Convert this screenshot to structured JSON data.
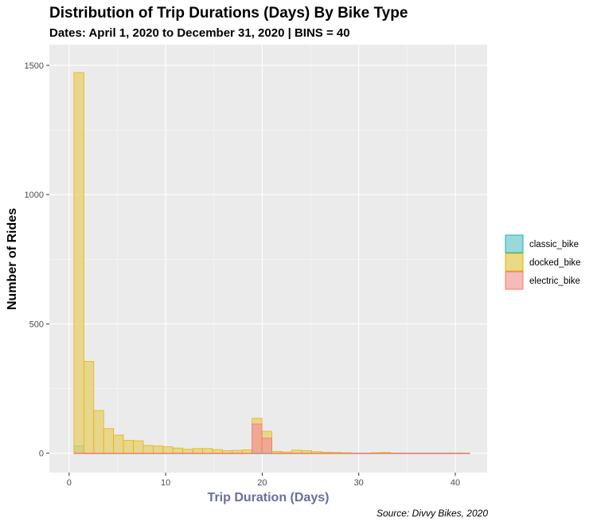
{
  "title": "Distribution of Trip Durations (Days) By Bike Type",
  "subtitle": "Dates: April 1, 2020 to December 31, 2020 | BINS = 40",
  "caption": "Source: Divvy Bikes, 2020",
  "chart_data": {
    "type": "histogram",
    "title": "Distribution of Trip Durations (Days) By Bike Type",
    "subtitle": "Dates: April 1, 2020 to December 31, 2020 | BINS = 40",
    "xlabel": "Trip Duration (Days)",
    "ylabel": "Number of Rides",
    "xlim": [
      -2.05,
      43.3
    ],
    "ylim": [
      -75,
      1580
    ],
    "x_ticks": [
      0,
      10,
      20,
      30,
      40
    ],
    "y_ticks": [
      0,
      500,
      1000,
      1500
    ],
    "grid": true,
    "legend_position": "right",
    "bins": 40,
    "bin_width": 1.025,
    "bin_start": 0.5,
    "series": [
      {
        "name": "classic_bike",
        "fill": "#7fd0d4",
        "stroke": "#00b1b8",
        "values": [
          28,
          0,
          0,
          0,
          0,
          0,
          0,
          0,
          0,
          0,
          0,
          0,
          0,
          0,
          0,
          0,
          0,
          0,
          0,
          0,
          0,
          0,
          0,
          0,
          0,
          0,
          0,
          0,
          0,
          0,
          0,
          0,
          0,
          0,
          0,
          0,
          0,
          0,
          0,
          0
        ]
      },
      {
        "name": "docked_bike",
        "fill": "#e7cf6e",
        "stroke": "#e6b600",
        "values": [
          1472,
          355,
          165,
          95,
          70,
          50,
          48,
          30,
          28,
          25,
          20,
          15,
          18,
          18,
          14,
          10,
          11,
          13,
          135,
          85,
          7,
          5,
          12,
          10,
          6,
          4,
          3,
          2,
          0,
          0,
          2,
          3,
          0,
          0,
          0,
          0,
          0,
          0,
          0,
          0
        ]
      },
      {
        "name": "electric_bike",
        "fill": "#f29a94",
        "stroke": "#f0766e",
        "values": [
          0,
          0,
          0,
          0,
          0,
          0,
          0,
          0,
          0,
          0,
          0,
          0,
          0,
          0,
          0,
          0,
          0,
          0,
          113,
          58,
          0,
          0,
          0,
          0,
          0,
          0,
          0,
          0,
          0,
          0,
          0,
          0,
          0,
          0,
          0,
          0,
          0,
          0,
          0,
          0
        ]
      }
    ],
    "legend": {
      "items": [
        {
          "label": "classic_bike",
          "fill": "#9ad8da",
          "stroke": "#1ab3b9"
        },
        {
          "label": "docked_bike",
          "fill": "#ecd983",
          "stroke": "#e0b300"
        },
        {
          "label": "electric_bike",
          "fill": "#f7bbb7",
          "stroke": "#ef7b72"
        }
      ]
    },
    "colors": {
      "panel_bg": "#ebebeb",
      "grid_major": "#ffffff",
      "xlabel_color": "#6a6d9c"
    }
  }
}
